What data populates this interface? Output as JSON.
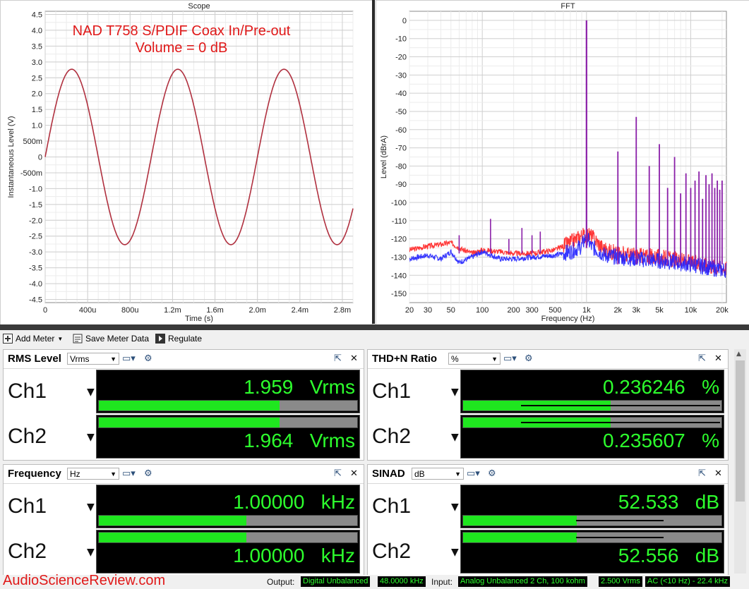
{
  "scope": {
    "title": "Scope",
    "annotation_line1": "NAD T758 S/PDIF Coax In/Pre-out",
    "annotation_line2": "Volume = 0 dB",
    "xlabel": "Time (s)",
    "ylabel": "Instantaneous Level (V)"
  },
  "fft": {
    "title": "FFT",
    "xlabel": "Frequency (Hz)",
    "ylabel": "Level (dBrA)"
  },
  "chart_data": [
    {
      "type": "line",
      "title": "Scope",
      "xlabel": "Time (s)",
      "ylabel": "Instantaneous Level (V)",
      "xlim": [
        0,
        0.0029
      ],
      "ylim": [
        -4.6,
        4.6
      ],
      "x_tick_labels": [
        "0",
        "400u",
        "800u",
        "1.2m",
        "1.6m",
        "2.0m",
        "2.4m",
        "2.8m"
      ],
      "y_tick_labels": [
        "4.5",
        "4.0",
        "3.5",
        "3.0",
        "2.5",
        "2.0",
        "1.5",
        "1.0",
        "500m",
        "0",
        "-500m",
        "-1.0",
        "-1.5",
        "-2.0",
        "-2.5",
        "-3.0",
        "-3.5",
        "-4.0",
        "-4.5"
      ],
      "grid": true,
      "series": [
        {
          "amplitude": 2.77,
          "frequency_hz": 1000,
          "color": "#b0303f"
        }
      ]
    },
    {
      "type": "line",
      "title": "FFT",
      "xlabel": "Frequency (Hz)",
      "ylabel": "Level (dBrA)",
      "x_scale": "log",
      "xlim": [
        20,
        22000
      ],
      "ylim": [
        -155,
        5
      ],
      "x_tick_labels": [
        "20",
        "30",
        "50",
        "100",
        "200",
        "300",
        "500",
        "1k",
        "2k",
        "3k",
        "5k",
        "10k",
        "20k"
      ],
      "y_tick_labels": [
        "0",
        "-10",
        "-20",
        "-30",
        "-40",
        "-50",
        "-60",
        "-70",
        "-80",
        "-90",
        "-100",
        "-110",
        "-120",
        "-130",
        "-140",
        "-150"
      ],
      "grid": true,
      "series": [
        {
          "color": "#ff2020",
          "x": [
            20,
            30,
            40,
            50,
            60,
            80,
            100,
            150,
            200,
            300,
            500,
            700,
            900,
            1000,
            1100,
            1500,
            2000,
            3000,
            5000,
            10000,
            20000
          ],
          "y": [
            -126,
            -124,
            -123,
            -122,
            -125,
            -128,
            -126,
            -127,
            -128,
            -128,
            -126,
            -122,
            -118,
            0,
            -118,
            -126,
            -128,
            -129,
            -130,
            -133,
            -136
          ]
        },
        {
          "color": "#2020ff",
          "x": [
            20,
            30,
            40,
            50,
            60,
            80,
            100,
            150,
            200,
            300,
            500,
            700,
            900,
            1000,
            1100,
            1500,
            2000,
            3000,
            5000,
            10000,
            20000
          ],
          "y": [
            -131,
            -129,
            -131,
            -127,
            -133,
            -130,
            -127,
            -131,
            -131,
            -130,
            -129,
            -127,
            -124,
            0,
            -124,
            -129,
            -130,
            -131,
            -132,
            -134,
            -137
          ]
        },
        {
          "name": "harmonics",
          "x": [
            2000,
            3000,
            4000,
            5000,
            6000,
            7000,
            8000,
            9000,
            10000,
            11000,
            12000,
            13000,
            14000,
            15000,
            16000,
            17000,
            18000,
            19000,
            20000
          ],
          "y": [
            -72,
            -53,
            -80,
            -68,
            -92,
            -75,
            -95,
            -84,
            -92,
            -88,
            -83,
            -98,
            -85,
            -90,
            -84,
            -92,
            -88,
            -93,
            -88
          ]
        },
        {
          "name": "low-frequency spurs",
          "x": [
            60,
            120,
            180,
            240,
            300,
            360
          ],
          "y": [
            -118,
            -109,
            -120,
            -114,
            -118,
            -116
          ]
        }
      ]
    }
  ],
  "toolbar": {
    "add_meter": "Add Meter",
    "save_meter_data": "Save Meter Data",
    "regulate": "Regulate"
  },
  "meters": {
    "rms": {
      "title": "RMS Level",
      "unit": "Vrms",
      "ch1": {
        "label": "Ch1",
        "value": "1.959",
        "unit": "Vrms",
        "bar": 0.7
      },
      "ch2": {
        "label": "Ch2",
        "value": "1.964",
        "unit": "Vrms",
        "bar": 0.7
      }
    },
    "thdn": {
      "title": "THD+N Ratio",
      "unit": "%",
      "ch1": {
        "label": "Ch1",
        "value": "0.236246",
        "unit": "%",
        "bar": 0.57
      },
      "ch2": {
        "label": "Ch2",
        "value": "0.235607",
        "unit": "%",
        "bar": 0.57
      }
    },
    "freq": {
      "title": "Frequency",
      "unit": "Hz",
      "ch1": {
        "label": "Ch1",
        "value": "1.00000",
        "unit": "kHz",
        "bar": 0.57
      },
      "ch2": {
        "label": "Ch2",
        "value": "1.00000",
        "unit": "kHz",
        "bar": 0.57
      }
    },
    "sinad": {
      "title": "SINAD",
      "unit": "dB",
      "ch1": {
        "label": "Ch1",
        "value": "52.533",
        "unit": "dB",
        "bar": 0.44
      },
      "ch2": {
        "label": "Ch2",
        "value": "52.556",
        "unit": "dB",
        "bar": 0.44
      }
    }
  },
  "status": {
    "brand": "AudioScienceReview.com",
    "output_label": "Output:",
    "output_value": "Digital Unbalanced",
    "output_rate": "48.0000 kHz",
    "input_label": "Input:",
    "input_value": "Analog Unbalanced 2 Ch, 100 kohm",
    "input_level": "2.500 Vrms",
    "input_band": "AC (<10 Hz) - 22.4 kHz"
  },
  "colors": {
    "meter_green": "#1fe61f",
    "digits_green": "#2dff2d",
    "fft_red": "#ff2020",
    "fft_blue": "#2020ff",
    "scope_trace": "#b0303f",
    "annotation_red": "#e01818"
  }
}
